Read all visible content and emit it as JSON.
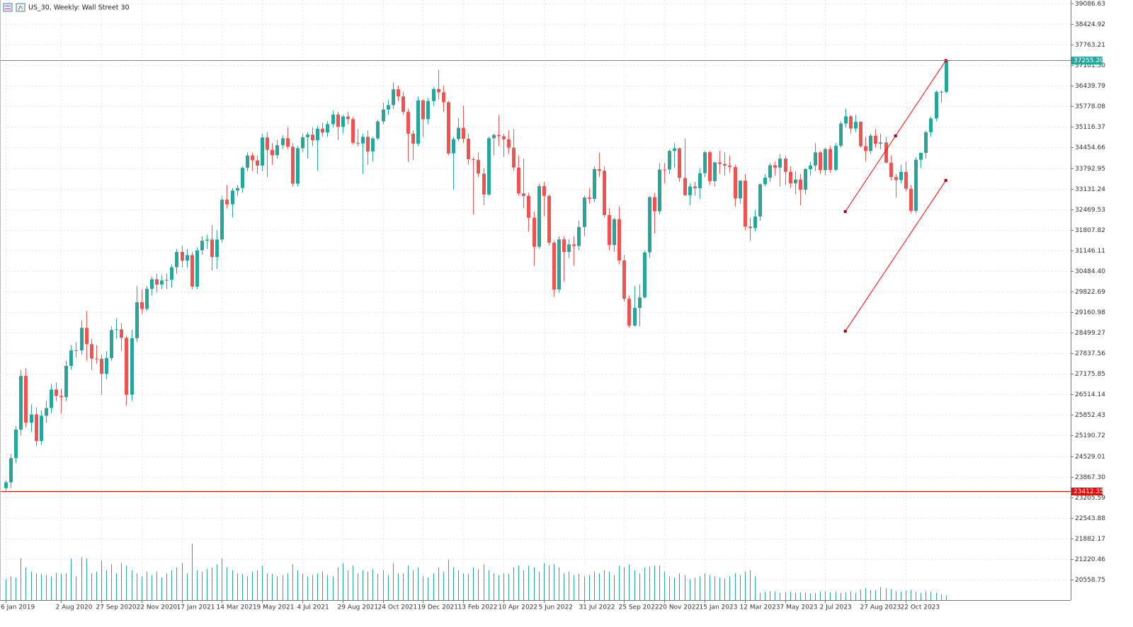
{
  "chart_data": {
    "type": "candlestick",
    "title": "US_30, Weekly:  Wall Street 30",
    "bull_color": "#26a69a",
    "bear_color": "#ef5350",
    "volume_color": "#26a69a",
    "grid": true,
    "ylim": [
      19898,
      39200
    ],
    "yticks": [
      39086.63,
      38424.92,
      37763.21,
      {
        "value": 37101.5,
        "label": "37101.50"
      },
      36439.79,
      35778.08,
      35116.37,
      34454.66,
      33792.95,
      33131.24,
      32469.53,
      31807.82,
      31146.11,
      {
        "value": 30484.4,
        "label": "30484.40"
      },
      29822.69,
      29160.98,
      28499.27,
      27837.56,
      27175.85,
      26514.14,
      25852.43,
      25190.72,
      24529.01,
      {
        "value": 23867.3,
        "label": "23867.30"
      },
      23205.59,
      22543.88,
      21882.17,
      21220.46,
      20558.75
    ],
    "xticks": [
      {
        "value": 0,
        "label": "6 Jan 2019"
      },
      {
        "value": 11,
        "label": "2 Aug 2020"
      },
      {
        "value": 19,
        "label": "27 Sep 2020"
      },
      {
        "value": 27,
        "label": "22 Nov 2020"
      },
      {
        "value": 35,
        "label": "17 Jan 2021"
      },
      {
        "value": 43,
        "label": "14 Mar 2021"
      },
      {
        "value": 51,
        "label": "9 May 2021"
      },
      {
        "value": 59,
        "label": "4 Jul 2021"
      },
      {
        "value": 67,
        "label": "29 Aug 2021"
      },
      {
        "value": 75,
        "label": "24 Oct 2021"
      },
      {
        "value": 83,
        "label": "19 Dec 2021"
      },
      {
        "value": 91,
        "label": "13 Feb 2022"
      },
      {
        "value": 99,
        "label": "10 Apr 2022"
      },
      {
        "value": 107,
        "label": "5 Jun 2022"
      },
      {
        "value": 115,
        "label": "31 Jul 2022"
      },
      {
        "value": 123,
        "label": "25 Sep 2022"
      },
      {
        "value": 131,
        "label": "20 Nov 2022"
      },
      {
        "value": 139,
        "label": "15 Jan 2023"
      },
      {
        "value": 147,
        "label": "12 Mar 2023"
      },
      {
        "value": 155,
        "label": "7 May 2023"
      },
      {
        "value": 163,
        "label": "2 Jul 2023"
      },
      {
        "value": 171,
        "label": "27 Aug 2023"
      },
      {
        "value": 179,
        "label": "22 Oct 2023"
      }
    ],
    "price_lines": [
      {
        "value": 37255.2,
        "label": "37255.20",
        "color": "#26a69a"
      },
      {
        "value": 23412.35,
        "color": "#ff0000"
      }
    ],
    "trend_lines": [
      {
        "color": "#ff0000",
        "points": [
          {
            "x": 167,
            "y": 32395
          },
          {
            "x": 177,
            "y": 34830
          },
          {
            "x": 187,
            "y": 37255
          }
        ]
      },
      {
        "color": "#ff0000",
        "points": [
          {
            "x": 167,
            "y": 28549
          },
          {
            "x": 187,
            "y": 33397
          }
        ]
      }
    ],
    "candles": [
      [
        23500,
        23750,
        23412,
        23685
      ],
      [
        23685,
        24600,
        23500,
        24465
      ],
      [
        24465,
        25500,
        24300,
        25383
      ],
      [
        25383,
        27300,
        25200,
        27110
      ],
      [
        27110,
        27350,
        25450,
        25605
      ],
      [
        25605,
        26200,
        25300,
        25871
      ],
      [
        25871,
        26100,
        24850,
        25015
      ],
      [
        25015,
        26000,
        24900,
        25827
      ],
      [
        25827,
        26300,
        25600,
        26075
      ],
      [
        26075,
        26850,
        25900,
        26671
      ],
      [
        26671,
        26900,
        26300,
        26469
      ],
      [
        26469,
        26700,
        25900,
        26428
      ],
      [
        26428,
        27600,
        26300,
        27433
      ],
      [
        27433,
        28100,
        27300,
        27931
      ],
      [
        27931,
        28200,
        27700,
        27930
      ],
      [
        27930,
        28900,
        27800,
        28653
      ],
      [
        28653,
        29200,
        27600,
        28133
      ],
      [
        28133,
        28300,
        27300,
        27666
      ],
      [
        27666,
        28100,
        27500,
        27657
      ],
      [
        27657,
        27800,
        26500,
        27173
      ],
      [
        27173,
        27900,
        27000,
        27682
      ],
      [
        27682,
        28700,
        27600,
        28586
      ],
      [
        28586,
        28950,
        28300,
        28606
      ],
      [
        28606,
        28800,
        27900,
        28335
      ],
      [
        28335,
        28400,
        26150,
        26501
      ],
      [
        26501,
        28600,
        26300,
        28323
      ],
      [
        28323,
        30000,
        28200,
        29479
      ],
      [
        29479,
        29900,
        29100,
        29263
      ],
      [
        29263,
        30000,
        29200,
        29910
      ],
      [
        29910,
        30300,
        29700,
        30218
      ],
      [
        30218,
        30400,
        29800,
        30046
      ],
      [
        30046,
        30350,
        29900,
        30179
      ],
      [
        30179,
        30400,
        29900,
        30199
      ],
      [
        30199,
        30700,
        29950,
        30606
      ],
      [
        30606,
        31200,
        30400,
        31097
      ],
      [
        31097,
        31300,
        30600,
        30814
      ],
      [
        30814,
        31200,
        30600,
        30996
      ],
      [
        30996,
        31100,
        29900,
        29982
      ],
      [
        29982,
        31250,
        29900,
        31148
      ],
      [
        31148,
        31600,
        31000,
        31458
      ],
      [
        31458,
        31650,
        31200,
        31494
      ],
      [
        31494,
        31950,
        30500,
        30932
      ],
      [
        30932,
        31800,
        30550,
        31496
      ],
      [
        31496,
        32900,
        31400,
        32778
      ],
      [
        32778,
        33250,
        32500,
        32627
      ],
      [
        32627,
        33150,
        32200,
        33072
      ],
      [
        33072,
        33250,
        32900,
        33153
      ],
      [
        33153,
        33850,
        33000,
        33800
      ],
      [
        33800,
        34300,
        33700,
        34200
      ],
      [
        34200,
        34300,
        33700,
        34043
      ],
      [
        34043,
        34200,
        33600,
        33874
      ],
      [
        33874,
        34900,
        33700,
        34777
      ],
      [
        34777,
        34950,
        33500,
        34382
      ],
      [
        34382,
        34600,
        33900,
        34207
      ],
      [
        34207,
        34700,
        34100,
        34529
      ],
      [
        34529,
        34850,
        34400,
        34756
      ],
      [
        34756,
        35100,
        34400,
        34479
      ],
      [
        34479,
        34600,
        33200,
        33290
      ],
      [
        33290,
        34500,
        33200,
        34433
      ],
      [
        34433,
        34900,
        34300,
        34786
      ],
      [
        34786,
        34950,
        34100,
        34870
      ],
      [
        34870,
        35100,
        34500,
        34687
      ],
      [
        34687,
        35150,
        33700,
        35061
      ],
      [
        35061,
        35250,
        34800,
        34935
      ],
      [
        34935,
        35300,
        34800,
        35208
      ],
      [
        35208,
        35650,
        35100,
        35515
      ],
      [
        35515,
        35600,
        34700,
        35120
      ],
      [
        35120,
        35500,
        34900,
        35455
      ],
      [
        35455,
        35600,
        35200,
        35369
      ],
      [
        35369,
        35450,
        34550,
        34607
      ],
      [
        34607,
        35050,
        34500,
        34584
      ],
      [
        34584,
        34900,
        33600,
        34798
      ],
      [
        34798,
        35000,
        33900,
        34326
      ],
      [
        34326,
        34800,
        34000,
        34746
      ],
      [
        34746,
        35350,
        34700,
        35294
      ],
      [
        35294,
        35900,
        35200,
        35677
      ],
      [
        35677,
        36000,
        35500,
        35819
      ],
      [
        35819,
        36550,
        35700,
        36328
      ],
      [
        36328,
        36450,
        35950,
        36100
      ],
      [
        36100,
        36250,
        35500,
        35601
      ],
      [
        35601,
        35700,
        34000,
        34899
      ],
      [
        34899,
        35000,
        34050,
        34580
      ],
      [
        34580,
        36100,
        34500,
        35971
      ],
      [
        35971,
        36000,
        34800,
        35365
      ],
      [
        35365,
        36050,
        35200,
        35950
      ],
      [
        35950,
        36400,
        35800,
        36338
      ],
      [
        36338,
        36950,
        36000,
        36231
      ],
      [
        36231,
        36450,
        35600,
        35912
      ],
      [
        35912,
        35950,
        34200,
        34265
      ],
      [
        34265,
        34800,
        33100,
        34725
      ],
      [
        34725,
        35400,
        34650,
        35089
      ],
      [
        35089,
        35800,
        34600,
        34738
      ],
      [
        34738,
        34900,
        33900,
        34079
      ],
      [
        34079,
        34150,
        32300,
        34058
      ],
      [
        34058,
        34300,
        33500,
        33615
      ],
      [
        33615,
        33800,
        32600,
        32944
      ],
      [
        32944,
        34800,
        32900,
        34754
      ],
      [
        34754,
        34900,
        34200,
        34861
      ],
      [
        34861,
        35500,
        34500,
        34818
      ],
      [
        34818,
        34900,
        34150,
        34721
      ],
      [
        34721,
        35000,
        34250,
        34451
      ],
      [
        34451,
        35050,
        33700,
        33811
      ],
      [
        33811,
        34200,
        32900,
        32977
      ],
      [
        32977,
        34100,
        32500,
        32899
      ],
      [
        32899,
        33000,
        31750,
        32197
      ],
      [
        32197,
        32400,
        30650,
        31262
      ],
      [
        31262,
        33300,
        31200,
        33213
      ],
      [
        33213,
        33350,
        32250,
        32900
      ],
      [
        32900,
        32950,
        31300,
        31393
      ],
      [
        31393,
        31450,
        29650,
        29888
      ],
      [
        29888,
        31600,
        29800,
        31501
      ],
      [
        31501,
        31600,
        30150,
        31097
      ],
      [
        31097,
        31500,
        30900,
        31338
      ],
      [
        31338,
        31600,
        30650,
        31288
      ],
      [
        31288,
        32100,
        31150,
        31899
      ],
      [
        31899,
        32900,
        31600,
        32845
      ],
      [
        32845,
        33150,
        32650,
        32803
      ],
      [
        32803,
        33850,
        32700,
        33761
      ],
      [
        33761,
        34300,
        33500,
        33706
      ],
      [
        33706,
        33850,
        32200,
        32283
      ],
      [
        32283,
        32500,
        31150,
        31318
      ],
      [
        31318,
        32200,
        31100,
        32151
      ],
      [
        32151,
        32550,
        30700,
        30822
      ],
      [
        30822,
        31000,
        29500,
        29590
      ],
      [
        29590,
        29700,
        28660,
        28725
      ],
      [
        28725,
        30000,
        28700,
        29297
      ],
      [
        29297,
        30050,
        28700,
        29634
      ],
      [
        29634,
        31150,
        29600,
        31082
      ],
      [
        31082,
        32900,
        30900,
        32861
      ],
      [
        32861,
        33000,
        31700,
        32403
      ],
      [
        32403,
        33950,
        32300,
        33747
      ],
      [
        33747,
        33950,
        33300,
        33746
      ],
      [
        33746,
        34400,
        33600,
        34347
      ],
      [
        34347,
        34600,
        33800,
        34429
      ],
      [
        34429,
        34450,
        33350,
        33476
      ],
      [
        33476,
        34750,
        32900,
        32920
      ],
      [
        32920,
        33300,
        32600,
        33203
      ],
      [
        33203,
        33350,
        32900,
        33147
      ],
      [
        33147,
        33800,
        32800,
        33631
      ],
      [
        33631,
        34350,
        33500,
        34303
      ],
      [
        34303,
        34350,
        33250,
        33375
      ],
      [
        33375,
        34000,
        33200,
        33978
      ],
      [
        33978,
        34350,
        33600,
        33926
      ],
      [
        33926,
        34300,
        33550,
        33869
      ],
      [
        33869,
        34200,
        33650,
        33827
      ],
      [
        33827,
        33900,
        32550,
        32817
      ],
      [
        32817,
        33400,
        32650,
        33391
      ],
      [
        33391,
        33600,
        31800,
        31910
      ],
      [
        31910,
        32200,
        31450,
        31862
      ],
      [
        31862,
        32450,
        31750,
        32238
      ],
      [
        32238,
        33300,
        32100,
        33274
      ],
      [
        33274,
        33600,
        33200,
        33485
      ],
      [
        33485,
        33950,
        33350,
        33886
      ],
      [
        33886,
        34000,
        33550,
        33809
      ],
      [
        33809,
        34250,
        33200,
        34098
      ],
      [
        34098,
        34200,
        33250,
        33674
      ],
      [
        33674,
        33850,
        33150,
        33301
      ],
      [
        33301,
        33700,
        32950,
        33427
      ],
      [
        33427,
        33600,
        32600,
        33093
      ],
      [
        33093,
        33800,
        32950,
        33762
      ],
      [
        33762,
        34000,
        33550,
        33877
      ],
      [
        33877,
        34600,
        33700,
        34299
      ],
      [
        34299,
        34350,
        33600,
        33727
      ],
      [
        33727,
        34450,
        33550,
        34408
      ],
      [
        34408,
        34500,
        33650,
        33735
      ],
      [
        33735,
        34600,
        33700,
        34509
      ],
      [
        34509,
        35300,
        34450,
        35228
      ],
      [
        35228,
        35700,
        35100,
        35459
      ],
      [
        35459,
        35500,
        34900,
        35066
      ],
      [
        35066,
        35500,
        34950,
        35281
      ],
      [
        35281,
        35300,
        34450,
        34500
      ],
      [
        34500,
        34800,
        34000,
        34346
      ],
      [
        34346,
        34900,
        34250,
        34838
      ],
      [
        34838,
        35050,
        34450,
        34577
      ],
      [
        34577,
        34900,
        34400,
        34618
      ],
      [
        34618,
        34800,
        33950,
        33964
      ],
      [
        33964,
        34200,
        33400,
        33507
      ],
      [
        33507,
        33600,
        32850,
        33407
      ],
      [
        33407,
        33900,
        33300,
        33670
      ],
      [
        33670,
        34000,
        33050,
        33127
      ],
      [
        33127,
        33250,
        32350,
        32418
      ],
      [
        32418,
        34150,
        32350,
        34061
      ],
      [
        34061,
        34300,
        33800,
        34283
      ],
      [
        34283,
        35000,
        34100,
        34947
      ],
      [
        34947,
        35450,
        34800,
        35390
      ],
      [
        35390,
        36300,
        35300,
        36245
      ],
      [
        36245,
        36300,
        35900,
        36247
      ],
      [
        36247,
        37300,
        36200,
        37255
      ]
    ],
    "volumes": [
      35,
      40,
      38,
      70,
      55,
      48,
      45,
      44,
      42,
      40,
      46,
      44,
      45,
      70,
      40,
      72,
      70,
      45,
      48,
      66,
      50,
      60,
      45,
      62,
      58,
      50,
      45,
      40,
      48,
      42,
      48,
      38,
      45,
      50,
      55,
      62,
      45,
      95,
      50,
      48,
      52,
      55,
      60,
      70,
      55,
      50,
      45,
      44,
      40,
      48,
      50,
      58,
      45,
      44,
      40,
      42,
      45,
      60,
      50,
      44,
      40,
      42,
      45,
      48,
      42,
      40,
      55,
      62,
      50,
      58,
      45,
      50,
      48,
      52,
      44,
      50,
      42,
      62,
      45,
      45,
      58,
      50,
      55,
      40,
      38,
      45,
      55,
      48,
      68,
      55,
      50,
      45,
      44,
      55,
      52,
      60,
      50,
      45,
      42,
      45,
      44,
      55,
      58,
      50,
      58,
      55,
      48,
      62,
      58,
      60,
      55,
      45,
      48,
      42,
      44,
      40,
      42,
      48,
      45,
      50,
      48,
      42,
      58,
      55,
      60,
      50,
      45,
      55,
      56,
      58,
      58,
      48,
      40,
      38,
      45,
      42,
      35,
      38,
      40,
      45,
      42,
      40,
      38,
      36,
      40,
      45,
      42,
      48,
      50,
      40,
      12,
      14,
      15,
      14,
      12,
      13,
      14,
      12,
      13,
      12,
      11,
      12,
      14,
      15,
      13,
      14,
      12,
      13,
      15,
      12,
      18,
      20,
      17,
      16,
      22,
      20,
      18,
      15,
      14,
      16,
      17,
      14,
      12,
      15,
      14,
      12,
      10,
      8
    ]
  }
}
